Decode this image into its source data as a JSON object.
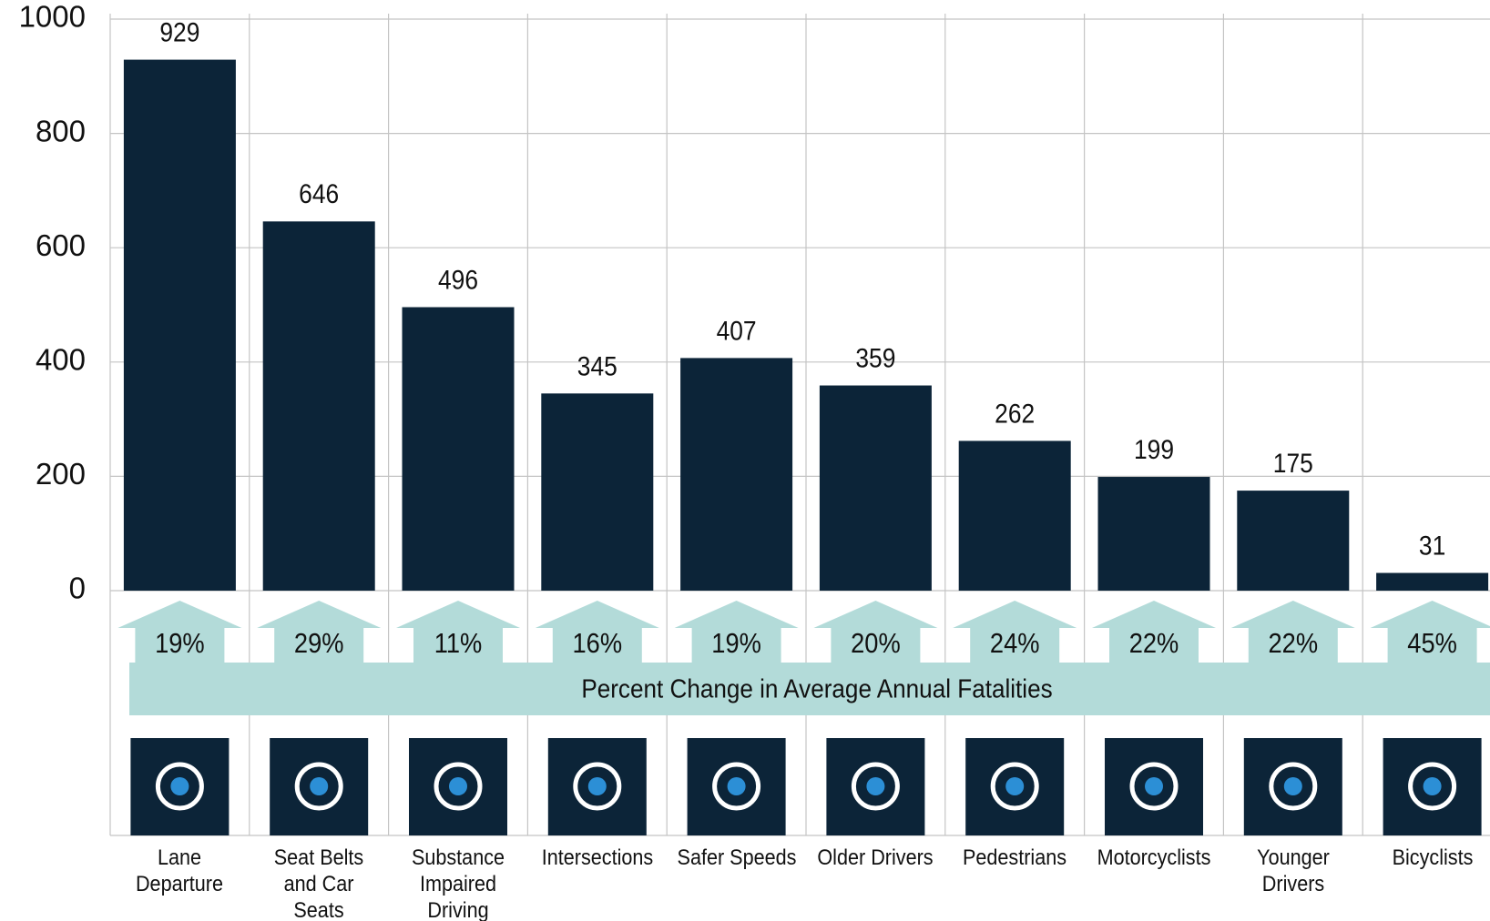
{
  "chart_data": {
    "type": "bar",
    "categories": [
      "Lane Departure",
      "Seat Belts and Car Seats",
      "Substance Impaired Driving",
      "Intersections",
      "Safer Speeds",
      "Older Drivers",
      "Pedestrians",
      "Motorcyclists",
      "Younger Drivers",
      "Bicyclists"
    ],
    "values": [
      929,
      646,
      496,
      345,
      407,
      359,
      262,
      199,
      175,
      31
    ],
    "color": "#0c2438",
    "ylim": [
      0,
      1000
    ],
    "yticks": [
      0,
      200,
      400,
      600,
      800,
      1000
    ],
    "grid": true,
    "percent_change": {
      "label": "Percent Change in Average Annual Fatalities",
      "values": [
        19,
        29,
        11,
        16,
        19,
        20,
        24,
        22,
        22,
        45
      ],
      "value_labels": [
        "19%",
        "29%",
        "11%",
        "16%",
        "19%",
        "20%",
        "24%",
        "22%",
        "22%",
        "45%"
      ],
      "color": "#b3dbd9"
    }
  }
}
